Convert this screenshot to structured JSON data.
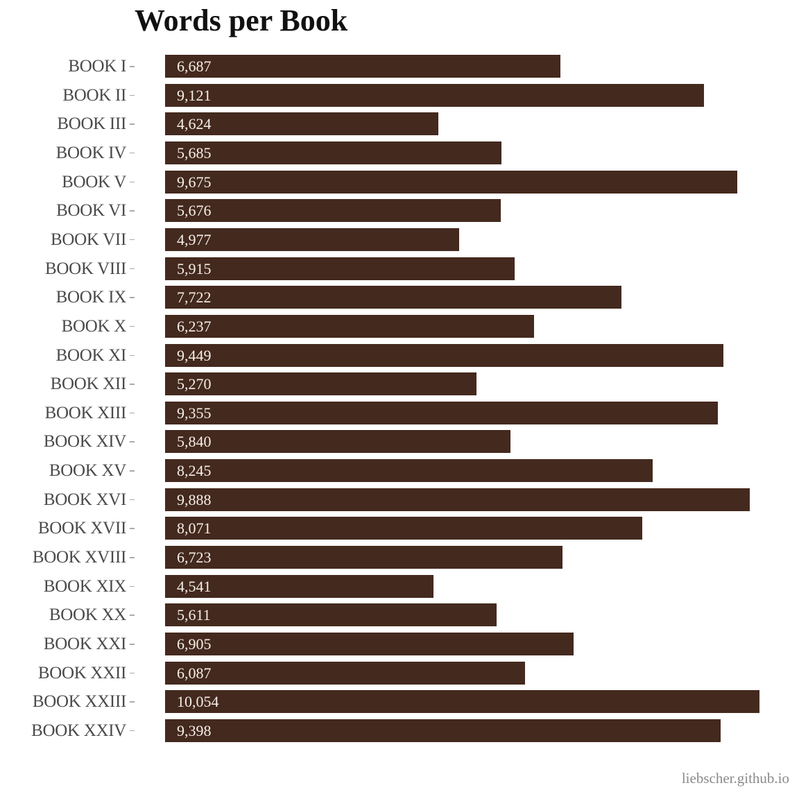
{
  "chart_data": {
    "type": "bar",
    "orientation": "horizontal",
    "title": "Words per Book",
    "xlabel": "",
    "ylabel": "",
    "categories": [
      "BOOK I",
      "BOOK II",
      "BOOK III",
      "BOOK IV",
      "BOOK V",
      "BOOK VI",
      "BOOK VII",
      "BOOK VIII",
      "BOOK IX",
      "BOOK X",
      "BOOK XI",
      "BOOK XII",
      "BOOK XIII",
      "BOOK XIV",
      "BOOK XV",
      "BOOK XVI",
      "BOOK XVII",
      "BOOK XVIII",
      "BOOK XIX",
      "BOOK XX",
      "BOOK XXI",
      "BOOK XXII",
      "BOOK XXIII",
      "BOOK XXIV"
    ],
    "values": [
      6687,
      9121,
      4624,
      5685,
      9675,
      5676,
      4977,
      5915,
      7722,
      6237,
      9449,
      5270,
      9355,
      5840,
      8245,
      9888,
      8071,
      6723,
      4541,
      5611,
      6905,
      6087,
      10054,
      9398
    ],
    "value_labels": [
      "6,687",
      "9,121",
      "4,624",
      "5,685",
      "9,675",
      "5,676",
      "4,977",
      "5,915",
      "7,722",
      "6,237",
      "9,449",
      "5,270",
      "9,355",
      "5,840",
      "8,245",
      "9,888",
      "8,071",
      "6,723",
      "4,541",
      "5,611",
      "6,905",
      "6,087",
      "10,054",
      "9,398"
    ],
    "xlim": [
      0,
      10054
    ],
    "grid": false,
    "legend": null,
    "bar_color": "#44291e",
    "annotation": "liebscher.github.io"
  },
  "header": {
    "title": "Words per Book"
  },
  "footer": {
    "credit": "liebscher.github.io"
  }
}
